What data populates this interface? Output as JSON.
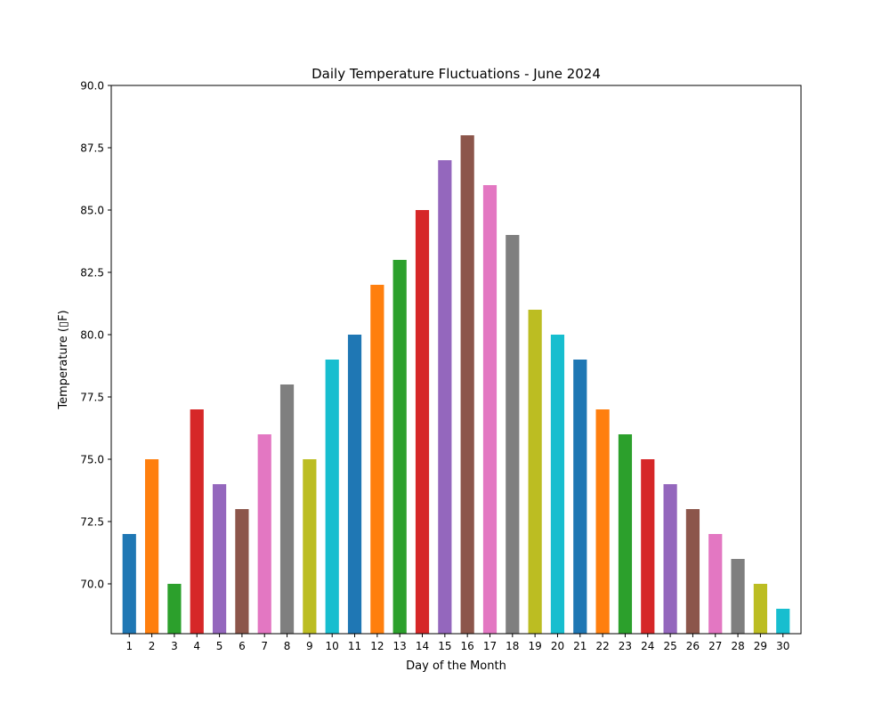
{
  "chart_data": {
    "type": "bar",
    "title": "Daily Temperature Fluctuations - June 2024",
    "xlabel": "Day of the Month",
    "ylabel": "Temperature (▯F)",
    "categories": [
      "1",
      "2",
      "3",
      "4",
      "5",
      "6",
      "7",
      "8",
      "9",
      "10",
      "11",
      "12",
      "13",
      "14",
      "15",
      "16",
      "17",
      "18",
      "19",
      "20",
      "21",
      "22",
      "23",
      "24",
      "25",
      "26",
      "27",
      "28",
      "29",
      "30"
    ],
    "values": [
      72,
      75,
      70,
      77,
      74,
      73,
      76,
      78,
      75,
      79,
      80,
      82,
      83,
      85,
      87,
      88,
      86,
      84,
      81,
      80,
      79,
      77,
      76,
      75,
      74,
      73,
      72,
      71,
      70,
      69
    ],
    "ylim": [
      68,
      90
    ],
    "yticks": [
      "70.0",
      "72.5",
      "75.0",
      "77.5",
      "80.0",
      "82.5",
      "85.0",
      "87.5",
      "90.0"
    ],
    "ytick_values": [
      70,
      72.5,
      75,
      77.5,
      80,
      82.5,
      85,
      87.5,
      90
    ],
    "grid": false,
    "colors": [
      "#1f77b4",
      "#ff7f0e",
      "#2ca02c",
      "#d62728",
      "#9467bd",
      "#8c564b",
      "#e377c2",
      "#7f7f7f",
      "#bcbd22",
      "#17becf"
    ]
  }
}
